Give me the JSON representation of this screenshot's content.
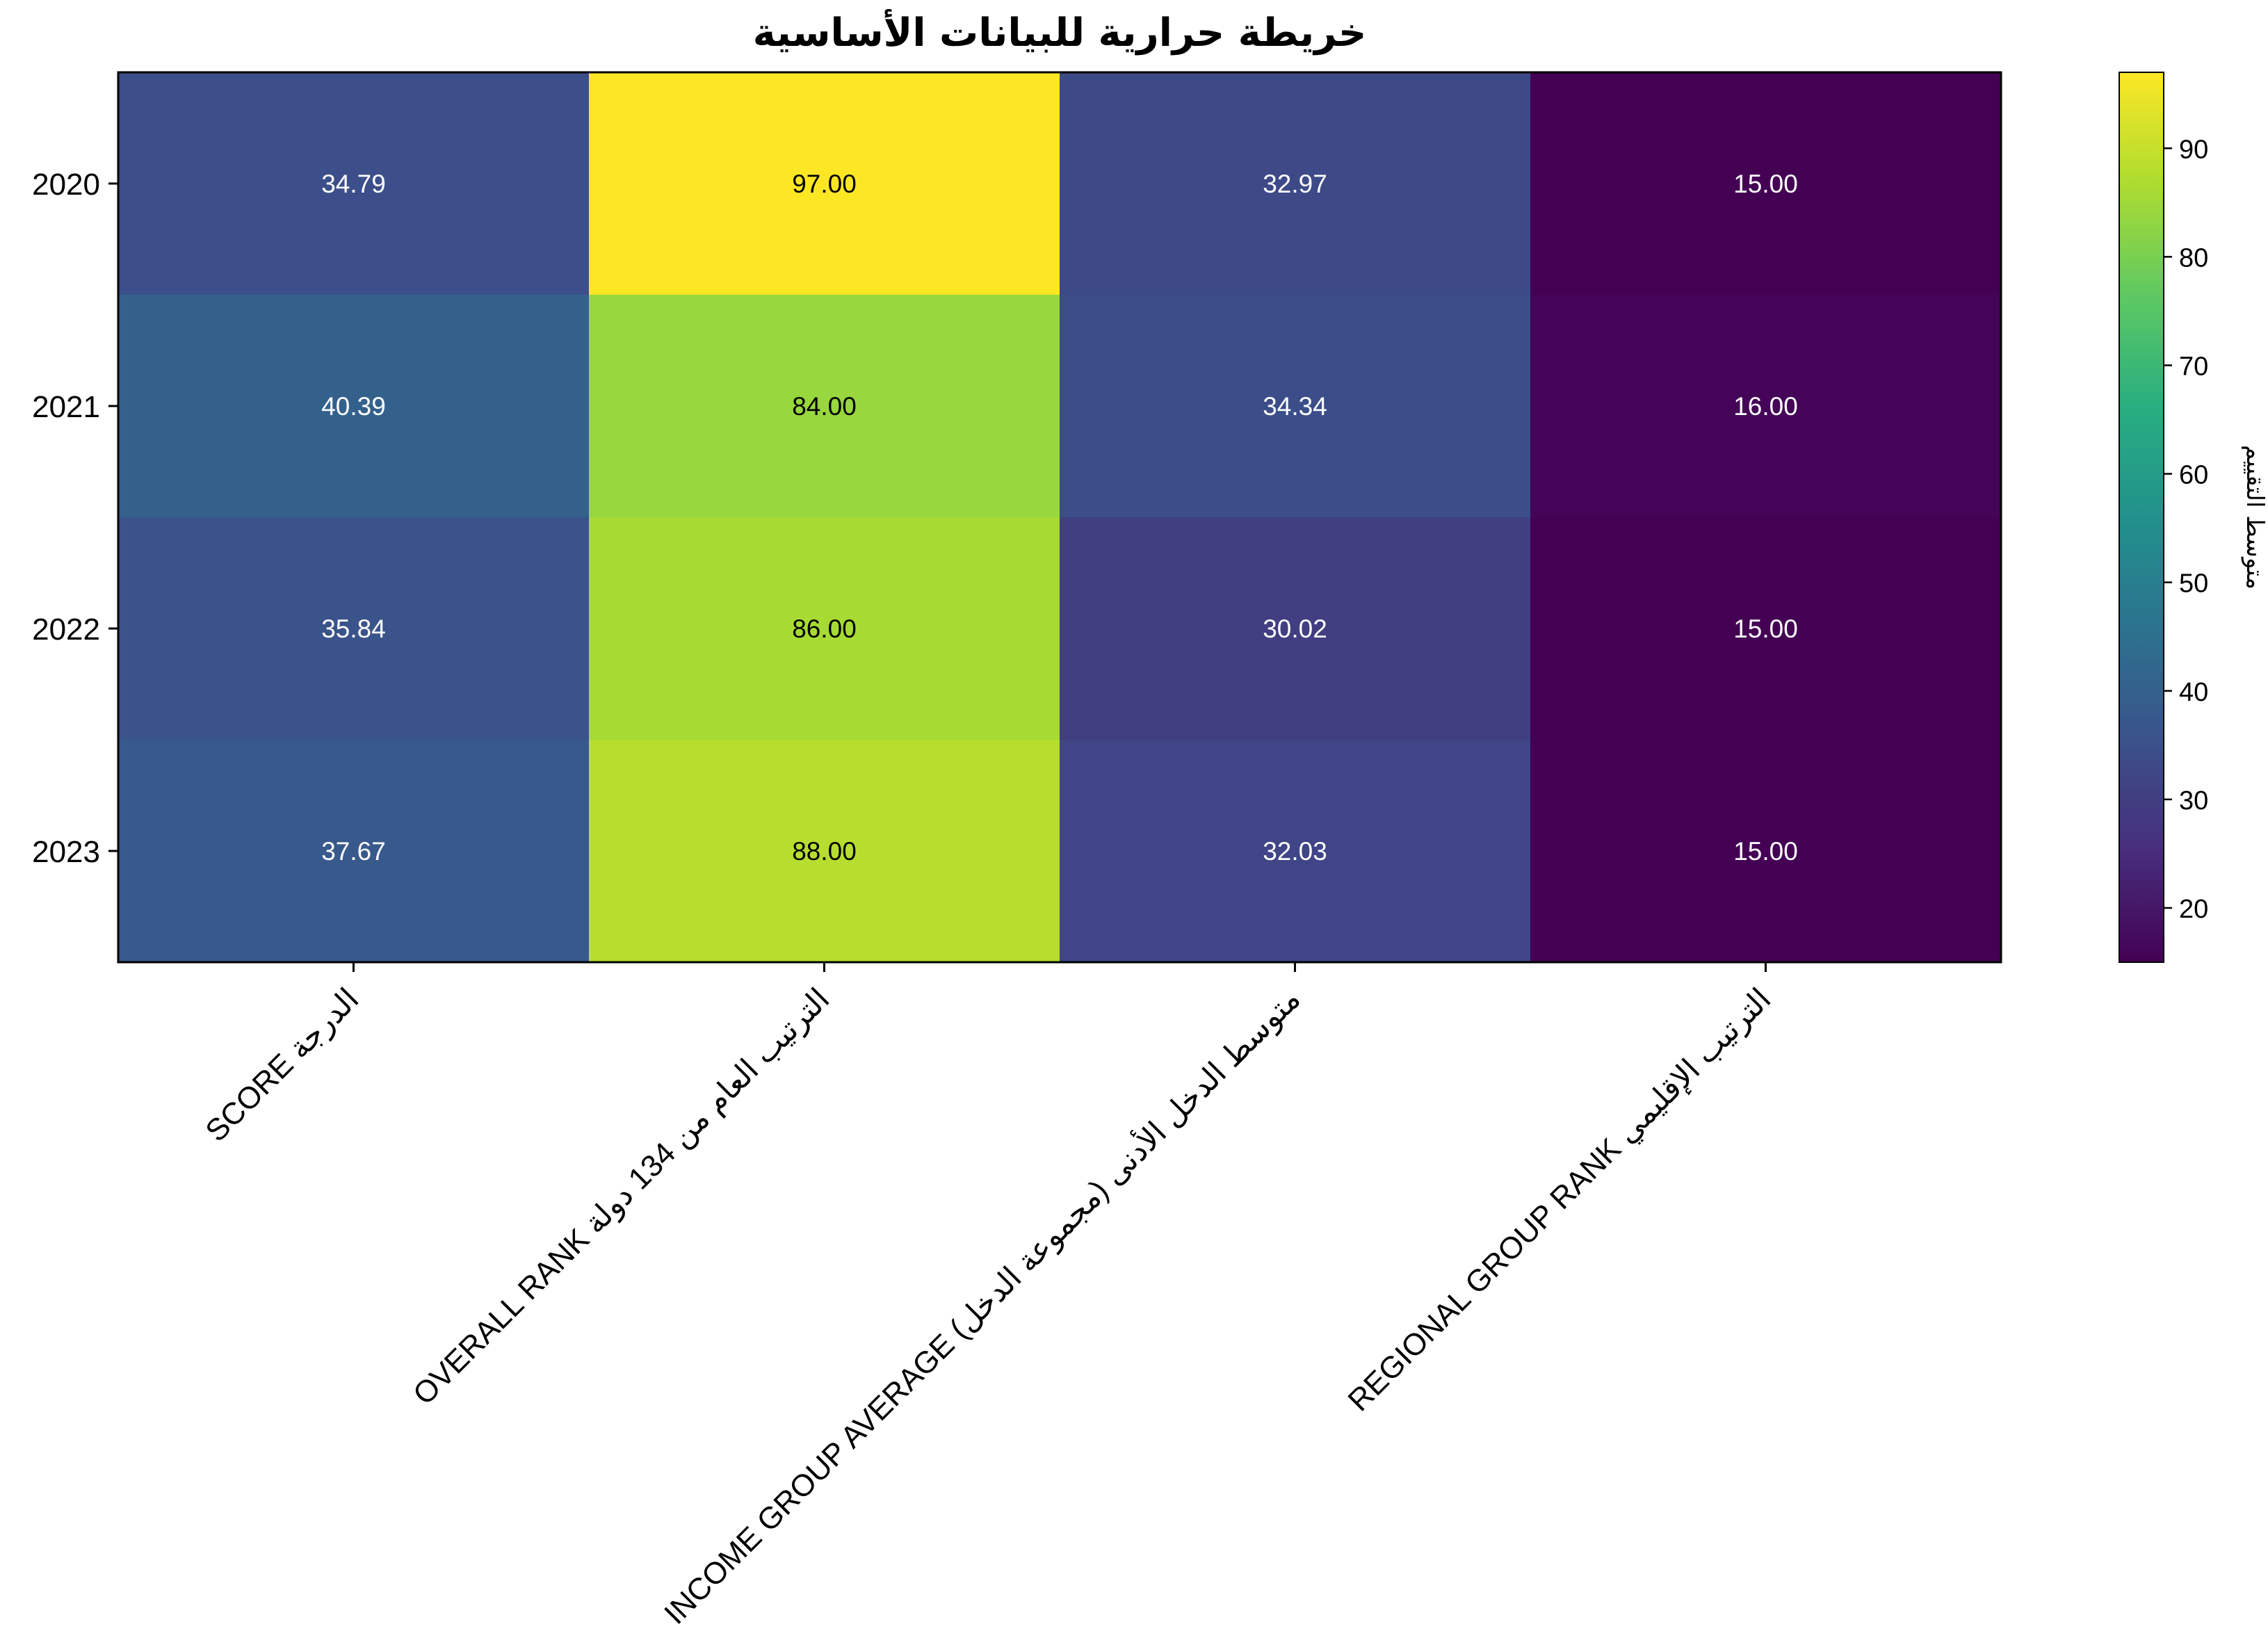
{
  "chart_data": {
    "type": "heatmap",
    "title": "خريطة حرارية للبيانات الأساسية",
    "rows": [
      "2020",
      "2021",
      "2022",
      "2023"
    ],
    "columns": [
      "SCORE الدرجة",
      "OVERALL RANK الترتيب العام من 134 دولة",
      "INCOME GROUP AVERAGE متوسط الدخل الأدنى (مجموعة الدخل)",
      "REGIONAL GROUP RANK الترتيب الإقليمي"
    ],
    "values": [
      [
        34.79,
        97.0,
        32.97,
        15.0
      ],
      [
        40.39,
        84.0,
        34.34,
        16.0
      ],
      [
        35.84,
        86.0,
        30.02,
        15.0
      ],
      [
        37.67,
        88.0,
        32.03,
        15.0
      ]
    ],
    "value_labels": [
      [
        "34.79",
        "97.00",
        "32.97",
        "15.00"
      ],
      [
        "40.39",
        "84.00",
        "34.34",
        "16.00"
      ],
      [
        "35.84",
        "86.00",
        "30.02",
        "15.00"
      ],
      [
        "37.67",
        "88.00",
        "32.03",
        "15.00"
      ]
    ],
    "colormap": "viridis",
    "colorbar": {
      "label": "متوسط التقييم",
      "min": 15,
      "max": 97,
      "ticks": [
        "20",
        "30",
        "40",
        "50",
        "60",
        "70",
        "80",
        "90"
      ]
    }
  }
}
